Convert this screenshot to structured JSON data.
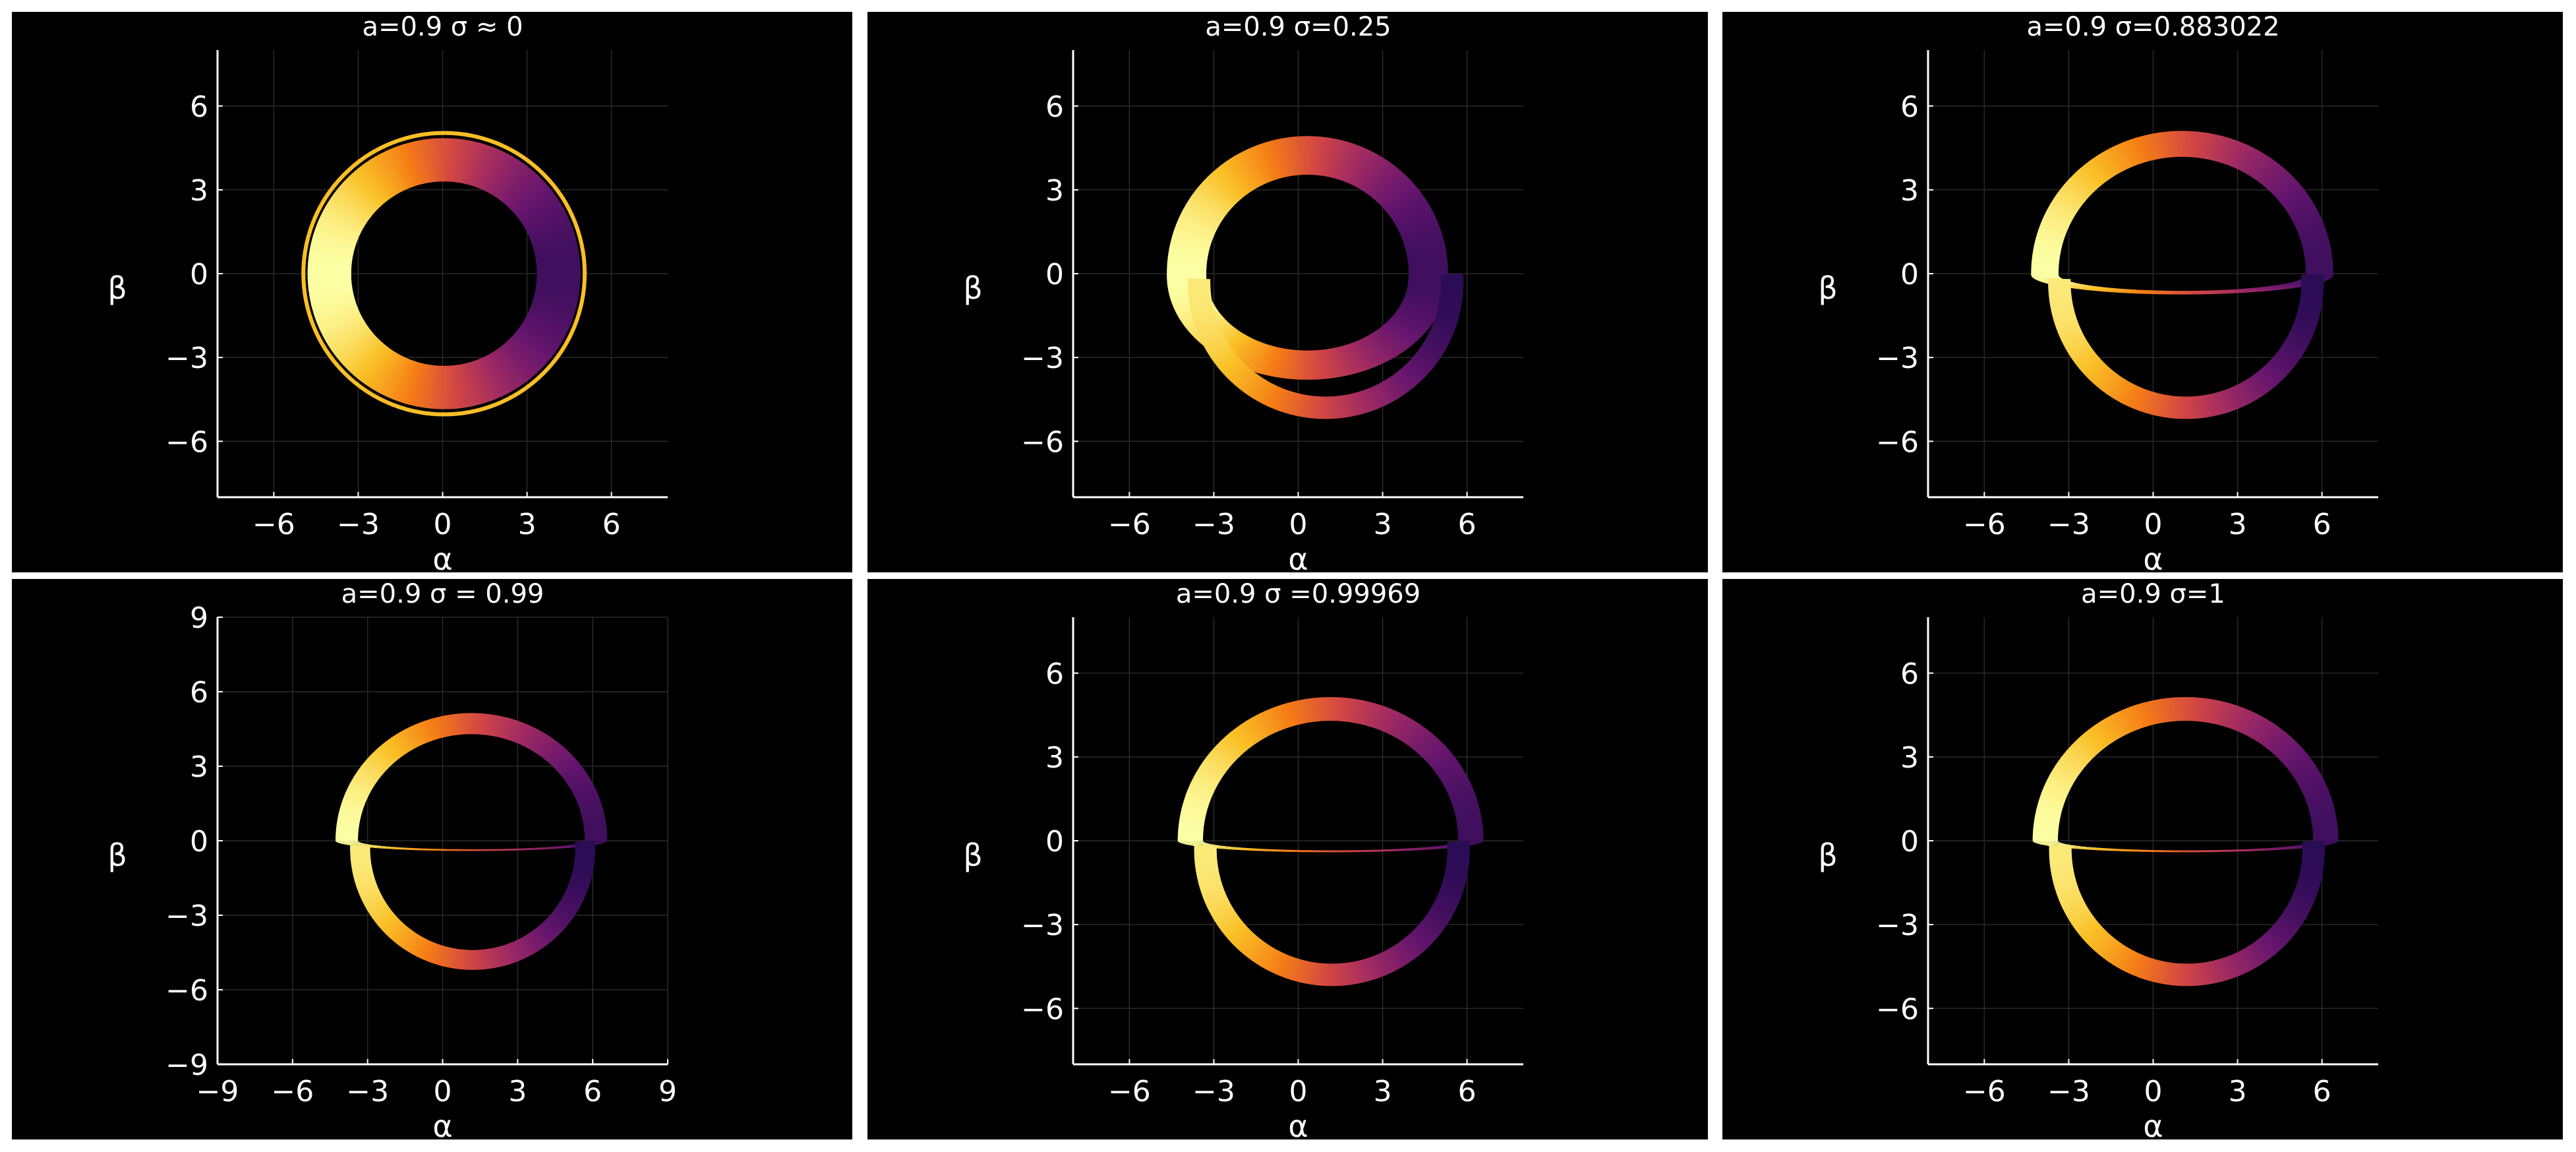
{
  "figure": {
    "background": "#ffffff",
    "panel_background": "#000000",
    "colormap": "inferno"
  },
  "chart_data": [
    {
      "type": "scatter",
      "title": "a=0.9 σ ≈ 0",
      "spin": 0.9,
      "sigma": 0.0,
      "xlabel": "α",
      "ylabel": "β",
      "xlim": [
        -8,
        8
      ],
      "ylim": [
        -8,
        8
      ],
      "xticks": [
        -6,
        -3,
        0,
        3,
        6
      ],
      "yticks": [
        -6,
        -3,
        0,
        3,
        6
      ],
      "grid": true
    },
    {
      "type": "scatter",
      "title": "a=0.9  σ=0.25",
      "spin": 0.9,
      "sigma": 0.25,
      "xlabel": "α",
      "ylabel": "β",
      "xlim": [
        -8,
        8
      ],
      "ylim": [
        -8,
        8
      ],
      "xticks": [
        -6,
        -3,
        0,
        3,
        6
      ],
      "yticks": [
        -6,
        -3,
        0,
        3,
        6
      ],
      "grid": true
    },
    {
      "type": "scatter",
      "title": "a=0.9   σ=0.883022",
      "spin": 0.9,
      "sigma": 0.883022,
      "xlabel": "α",
      "ylabel": "β",
      "xlim": [
        -8,
        8
      ],
      "ylim": [
        -8,
        8
      ],
      "xticks": [
        -6,
        -3,
        0,
        3,
        6
      ],
      "yticks": [
        -6,
        -3,
        0,
        3,
        6
      ],
      "grid": true
    },
    {
      "type": "scatter",
      "title": "a=0.9  σ = 0.99",
      "spin": 0.9,
      "sigma": 0.99,
      "xlabel": "α",
      "ylabel": "β",
      "xlim": [
        -9,
        9
      ],
      "ylim": [
        -9,
        9
      ],
      "xticks": [
        -9,
        -6,
        -3,
        0,
        3,
        6,
        9
      ],
      "yticks": [
        -9,
        -6,
        -3,
        0,
        3,
        6,
        9
      ],
      "grid": true
    },
    {
      "type": "scatter",
      "title": "a=0.9 σ =0.99969",
      "spin": 0.9,
      "sigma": 0.99969,
      "xlabel": "α",
      "ylabel": "β",
      "xlim": [
        -8,
        8
      ],
      "ylim": [
        -8,
        8
      ],
      "xticks": [
        -6,
        -3,
        0,
        3,
        6
      ],
      "yticks": [
        -6,
        -3,
        0,
        3,
        6
      ],
      "grid": true
    },
    {
      "type": "scatter",
      "title": "a=0.9  σ=1",
      "spin": 0.9,
      "sigma": 1,
      "xlabel": "α",
      "ylabel": "β",
      "xlim": [
        -8,
        8
      ],
      "ylim": [
        -8,
        8
      ],
      "xticks": [
        -6,
        -3,
        0,
        3,
        6
      ],
      "yticks": [
        -6,
        -3,
        0,
        3,
        6
      ],
      "grid": true
    }
  ]
}
